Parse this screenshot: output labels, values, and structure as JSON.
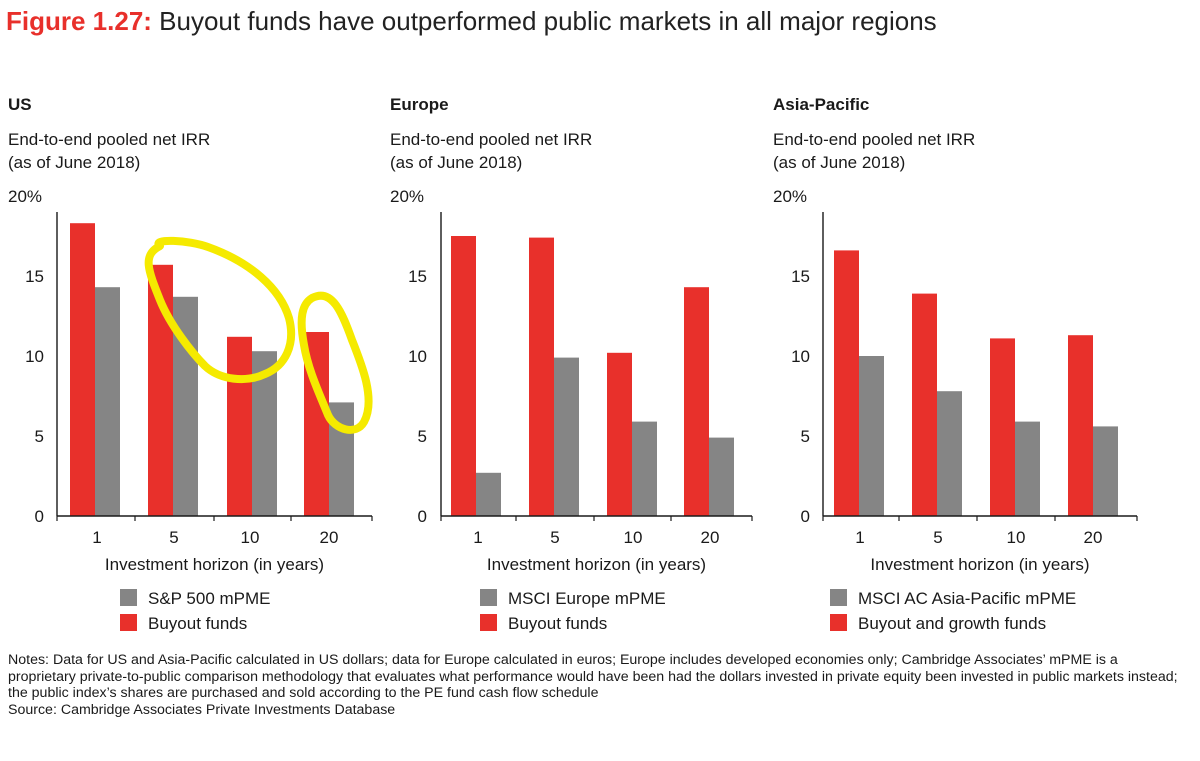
{
  "figure": {
    "label": "Figure 1.27:",
    "title": "Buyout funds have outperformed public markets in all major regions"
  },
  "colors": {
    "buyout": "#e8302b",
    "public": "#858585",
    "axis": "#1a1a1a",
    "highlight": "#f5ea00"
  },
  "chart_data": [
    {
      "type": "bar",
      "title": "US",
      "subtitle_line1": "End-to-end pooled net IRR",
      "subtitle_line2": "(as of June 2018)",
      "top_tick_label": "20%",
      "categories": [
        "1",
        "5",
        "10",
        "20"
      ],
      "xlabel": "Investment horizon (in years)",
      "ylim": [
        0,
        20
      ],
      "yticks": [
        "0",
        "5",
        "10",
        "15"
      ],
      "series": [
        {
          "name": "Buyout funds",
          "key": "buyout",
          "values": [
            18.3,
            15.7,
            11.2,
            11.5
          ]
        },
        {
          "name": "S&P 500 mPME",
          "key": "public",
          "values": [
            14.3,
            13.7,
            10.3,
            7.1
          ]
        }
      ],
      "legend": [
        {
          "label": "S&P 500 mPME",
          "key": "public"
        },
        {
          "label": "Buyout funds",
          "key": "buyout"
        }
      ],
      "annotations": "yellow hand-drawn circles around the 5-10 year bars and the 20 year bars"
    },
    {
      "type": "bar",
      "title": "Europe",
      "subtitle_line1": "End-to-end pooled net IRR",
      "subtitle_line2": "(as of June 2018)",
      "top_tick_label": "20%",
      "categories": [
        "1",
        "5",
        "10",
        "20"
      ],
      "xlabel": "Investment horizon (in years)",
      "ylim": [
        0,
        20
      ],
      "yticks": [
        "0",
        "5",
        "10",
        "15"
      ],
      "series": [
        {
          "name": "Buyout funds",
          "key": "buyout",
          "values": [
            17.5,
            17.4,
            10.2,
            14.3
          ]
        },
        {
          "name": "MSCI Europe mPME",
          "key": "public",
          "values": [
            2.7,
            9.9,
            5.9,
            4.9
          ]
        }
      ],
      "legend": [
        {
          "label": "MSCI Europe mPME",
          "key": "public"
        },
        {
          "label": "Buyout funds",
          "key": "buyout"
        }
      ]
    },
    {
      "type": "bar",
      "title": "Asia-Pacific",
      "subtitle_line1": "End-to-end pooled net IRR",
      "subtitle_line2": "(as of June 2018)",
      "top_tick_label": "20%",
      "categories": [
        "1",
        "5",
        "10",
        "20"
      ],
      "xlabel": "Investment horizon (in years)",
      "ylim": [
        0,
        20
      ],
      "yticks": [
        "0",
        "5",
        "10",
        "15"
      ],
      "series": [
        {
          "name": "Buyout and growth funds",
          "key": "buyout",
          "values": [
            16.6,
            13.9,
            11.1,
            11.3
          ]
        },
        {
          "name": "MSCI AC Asia-Pacific mPME",
          "key": "public",
          "values": [
            10.0,
            7.8,
            5.9,
            5.6
          ]
        }
      ],
      "legend": [
        {
          "label": "MSCI AC Asia-Pacific mPME",
          "key": "public"
        },
        {
          "label": "Buyout and growth funds",
          "key": "buyout"
        }
      ]
    }
  ],
  "notes": {
    "text": "Notes: Data for US and Asia-Pacific calculated in US dollars; data for Europe calculated in euros; Europe includes developed economies only; Cambridge Associates’ mPME is a proprietary private-to-public comparison methodology that evaluates what performance would have been had the dollars invested in private equity been invested in public markets instead; the public index’s shares are purchased and sold according to the PE fund cash flow schedule",
    "source": "Source: Cambridge Associates Private Investments Database"
  }
}
